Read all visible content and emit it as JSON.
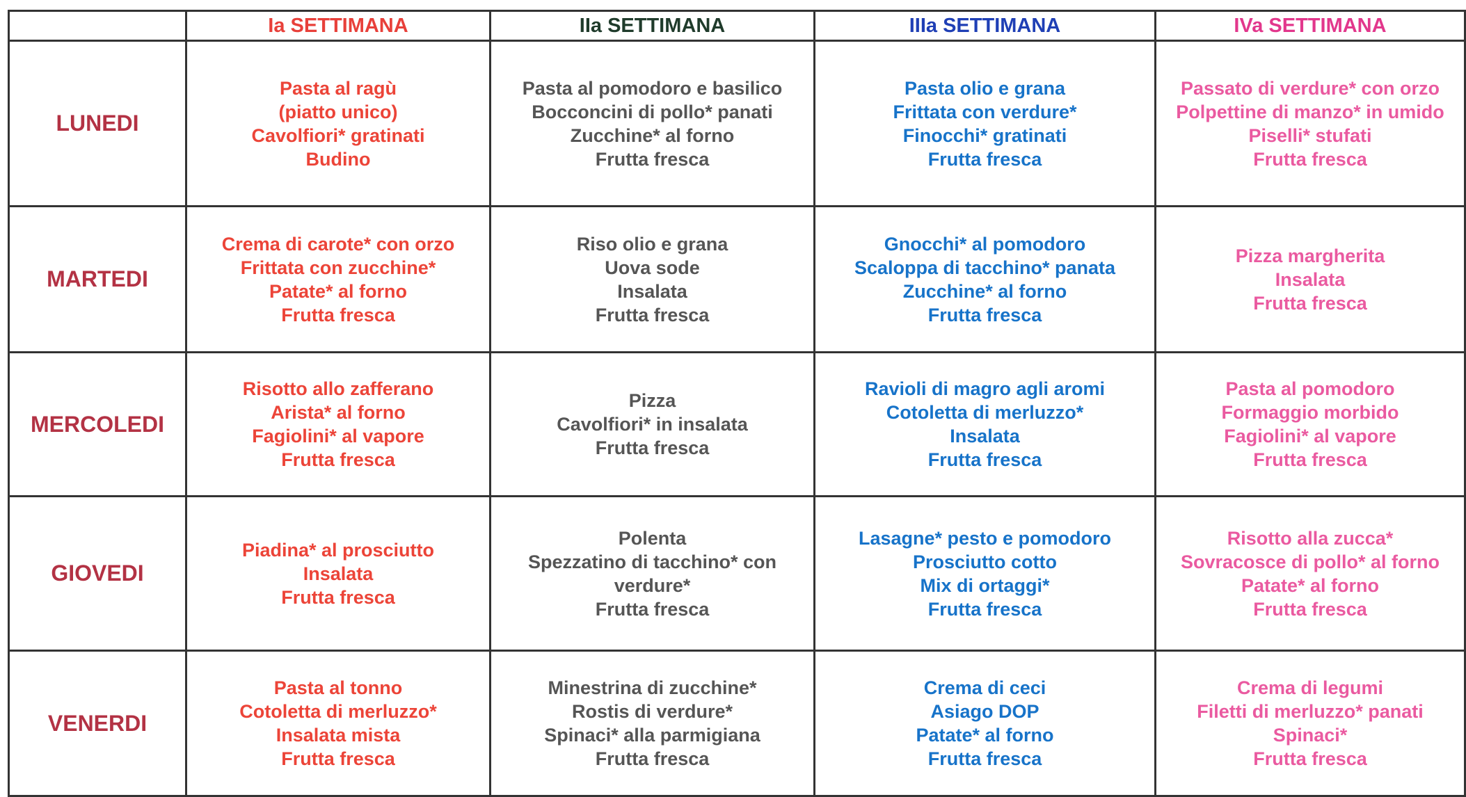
{
  "table": {
    "header": [
      "Ia SETTIMANA",
      "IIa SETTIMANA",
      "IIIa SETTIMANA",
      "IVa SETTIMANA"
    ],
    "rows": [
      {
        "day": "LUNEDI",
        "cells": [
          [
            "Pasta al ragù",
            "(piatto unico)",
            "Cavolfiori* gratinati",
            "Budino"
          ],
          [
            "Pasta al pomodoro e basilico",
            "Bocconcini di pollo* panati",
            "Zucchine* al forno",
            "Frutta fresca"
          ],
          [
            "Pasta olio e grana",
            "Frittata con verdure*",
            "Finocchi* gratinati",
            "Frutta fresca"
          ],
          [
            "Passato di verdure* con orzo",
            "Polpettine di manzo* in umido",
            "Piselli* stufati",
            "Frutta fresca"
          ]
        ]
      },
      {
        "day": "MARTEDI",
        "cells": [
          [
            "Crema di carote* con orzo",
            "Frittata con zucchine*",
            "Patate* al forno",
            "Frutta fresca"
          ],
          [
            "Riso olio e grana",
            "Uova sode",
            "Insalata",
            "Frutta fresca"
          ],
          [
            "Gnocchi* al pomodoro",
            "Scaloppa di tacchino* panata",
            "Zucchine* al forno",
            "Frutta fresca"
          ],
          [
            "Pizza margherita",
            "Insalata",
            "Frutta fresca"
          ]
        ]
      },
      {
        "day": "MERCOLEDI",
        "cells": [
          [
            "Risotto allo zafferano",
            "Arista* al forno",
            "Fagiolini* al vapore",
            "Frutta fresca"
          ],
          [
            "Pizza",
            "Cavolfiori* in insalata",
            "Frutta fresca"
          ],
          [
            "Ravioli di magro agli aromi",
            "Cotoletta di merluzzo*",
            "Insalata",
            "Frutta fresca"
          ],
          [
            "Pasta al pomodoro",
            "Formaggio morbido",
            "Fagiolini* al vapore",
            "Frutta fresca"
          ]
        ]
      },
      {
        "day": "GIOVEDI",
        "cells": [
          [
            "Piadina* al prosciutto",
            "Insalata",
            "Frutta fresca"
          ],
          [
            "Polenta",
            "Spezzatino di tacchino* con",
            "verdure*",
            "Frutta fresca"
          ],
          [
            "Lasagne* pesto e pomodoro",
            "Prosciutto cotto",
            "Mix di ortaggi*",
            "Frutta fresca"
          ],
          [
            "Risotto alla zucca*",
            "Sovracosce di pollo* al forno",
            "Patate* al forno",
            "Frutta fresca"
          ]
        ]
      },
      {
        "day": "VENERDI",
        "cells": [
          [
            "Pasta al tonno",
            "Cotoletta di merluzzo*",
            "Insalata mista",
            "Frutta fresca"
          ],
          [
            "Minestrina di zucchine*",
            "Rostis di verdure*",
            "Spinaci* alla parmigiana",
            "Frutta fresca"
          ],
          [
            "Crema di ceci",
            "Asiago DOP",
            "Patate* al forno",
            "Frutta fresca"
          ],
          [
            "Crema di legumi",
            "Filetti di merluzzo* panati",
            "Spinaci*",
            "Frutta fresca"
          ]
        ]
      }
    ]
  }
}
